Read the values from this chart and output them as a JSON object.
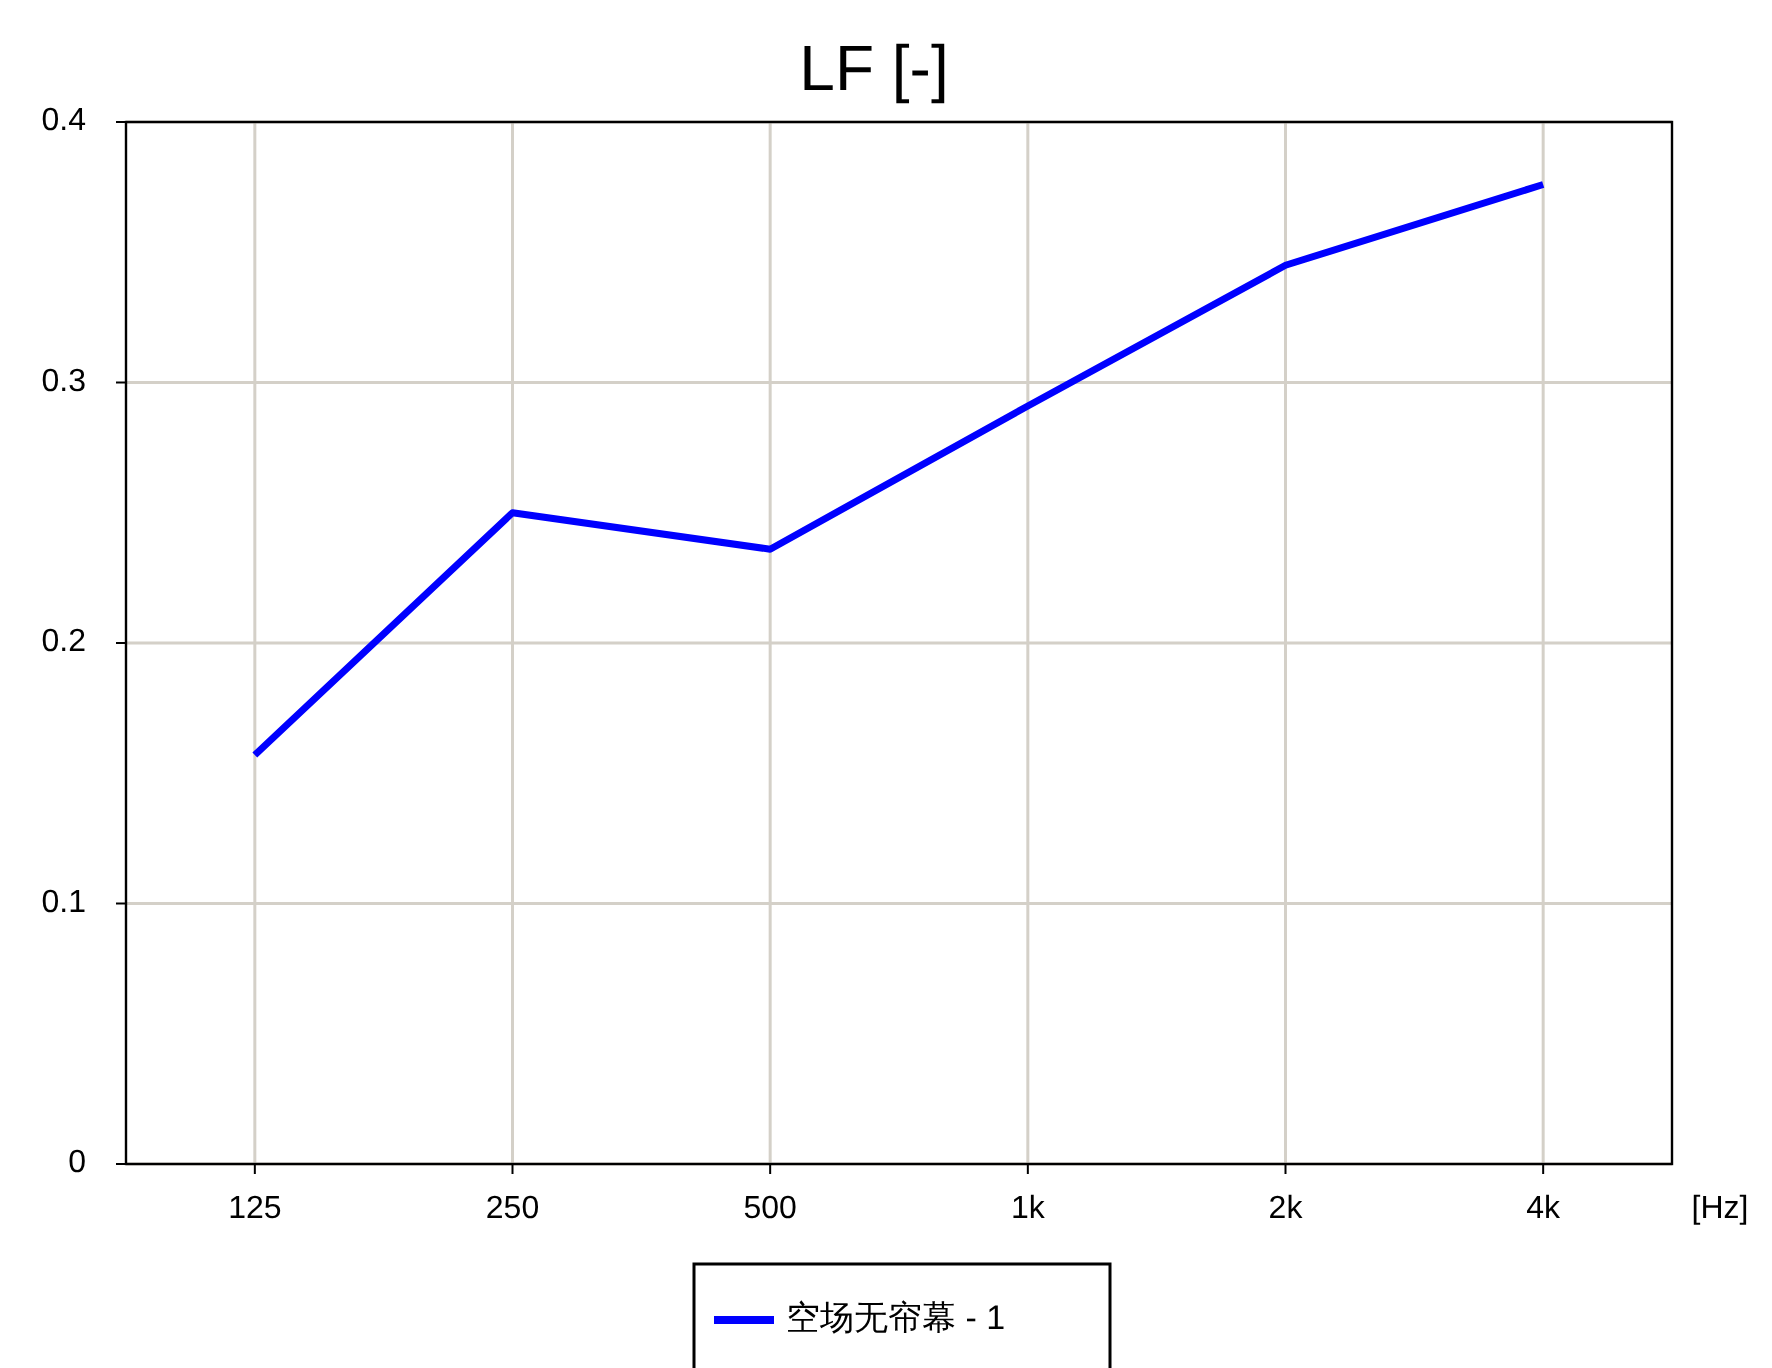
{
  "chart_data": {
    "type": "line",
    "title": "LF [-]",
    "xlabel": "[Hz]",
    "categories": [
      "125",
      "250",
      "500",
      "1k",
      "2k",
      "4k"
    ],
    "series": [
      {
        "name": "空场无帘幕 - 1",
        "color": "#0000ff",
        "values": [
          0.157,
          0.25,
          0.236,
          0.291,
          0.345,
          0.376
        ]
      }
    ],
    "ylim": [
      0,
      0.4
    ],
    "yticks": [
      0,
      0.1,
      0.2,
      0.3,
      0.4
    ],
    "grid": true,
    "legend": "bottom",
    "marker": "none",
    "line_style": "solid"
  }
}
